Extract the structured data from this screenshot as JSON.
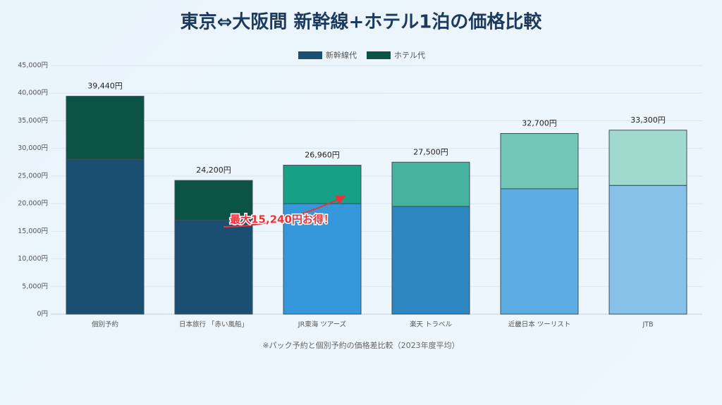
{
  "chart_data": {
    "type": "stacked-bar",
    "title": "東京⇔大阪間 新幹線+ホテル1泊の価格比較",
    "categories": [
      "個別予約",
      "日本旅行 「赤い風船」",
      "JR東海 ツアーズ",
      "楽天 トラベル",
      "近畿日本 ツーリスト",
      "JTB"
    ],
    "series": [
      {
        "name": "新幹線代",
        "color": "#1a4f72",
        "colors": [
          "#1a4f72",
          "#1a4f72",
          "#3498db",
          "#2e86c1",
          "#5dade2",
          "#85c1e9"
        ],
        "values": [
          28000,
          17000,
          20000,
          19500,
          22700,
          23300
        ]
      },
      {
        "name": "ホテル代",
        "color": "#0b5345",
        "colors": [
          "#0b5345",
          "#0b5345",
          "#16a085",
          "#45b39d",
          "#73c6b6",
          "#a2d9ce"
        ],
        "values": [
          11440,
          7200,
          6960,
          8000,
          10000,
          10000
        ]
      }
    ],
    "totals": [
      39440,
      24200,
      26960,
      27500,
      32700,
      33300
    ],
    "total_labels": [
      "39,440円",
      "24,200円",
      "26,960円",
      "27,500円",
      "32,700円",
      "33,300円"
    ],
    "ylim": [
      0,
      45000
    ],
    "yticks": [
      {
        "value": 0,
        "label": "0円"
      },
      {
        "value": 5000,
        "label": "5,000円"
      },
      {
        "value": 10000,
        "label": "10,000円"
      },
      {
        "value": 15000,
        "label": "15,000円"
      },
      {
        "value": 20000,
        "label": "20,000円"
      },
      {
        "value": 25000,
        "label": "25,000円"
      },
      {
        "value": 30000,
        "label": "30,000円"
      },
      {
        "value": 35000,
        "label": "35,000円"
      },
      {
        "value": 40000,
        "label": "40,000円"
      },
      {
        "value": 45000,
        "label": "45,000円"
      }
    ],
    "grid": true,
    "legend": "top",
    "annotation": "最大15,240円お得！",
    "footnote": "※パック予約と個別予約の価格差比較（2023年度平均）"
  }
}
